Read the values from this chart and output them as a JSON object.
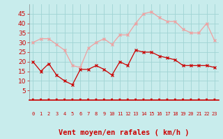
{
  "x": [
    0,
    1,
    2,
    3,
    4,
    5,
    6,
    7,
    8,
    9,
    10,
    11,
    12,
    13,
    14,
    15,
    16,
    17,
    18,
    19,
    20,
    21,
    22,
    23
  ],
  "vent_moyen": [
    20,
    15,
    19,
    13,
    10,
    8,
    16,
    16,
    18,
    16,
    13,
    20,
    18,
    26,
    25,
    25,
    23,
    22,
    21,
    18,
    18,
    18,
    18,
    17
  ],
  "rafales": [
    30,
    32,
    32,
    29,
    26,
    18,
    17,
    27,
    30,
    32,
    29,
    34,
    34,
    40,
    45,
    46,
    43,
    41,
    41,
    37,
    35,
    35,
    40,
    31
  ],
  "vent_color": "#cc0000",
  "rafales_color": "#f0a0a0",
  "bg_color": "#c8ecec",
  "grid_color": "#a0d4d4",
  "xlabel": "Vent moyen/en rafales ( km/h )",
  "xlabel_color": "#cc0000",
  "tick_color": "#cc0000",
  "arrow_color": "#cc0000",
  "ylim": [
    0,
    50
  ],
  "yticks": [
    5,
    10,
    15,
    20,
    25,
    30,
    35,
    40,
    45
  ],
  "xlim": [
    -0.5,
    23.5
  ],
  "axis_fontsize": 6.5,
  "label_fontsize": 7.5
}
